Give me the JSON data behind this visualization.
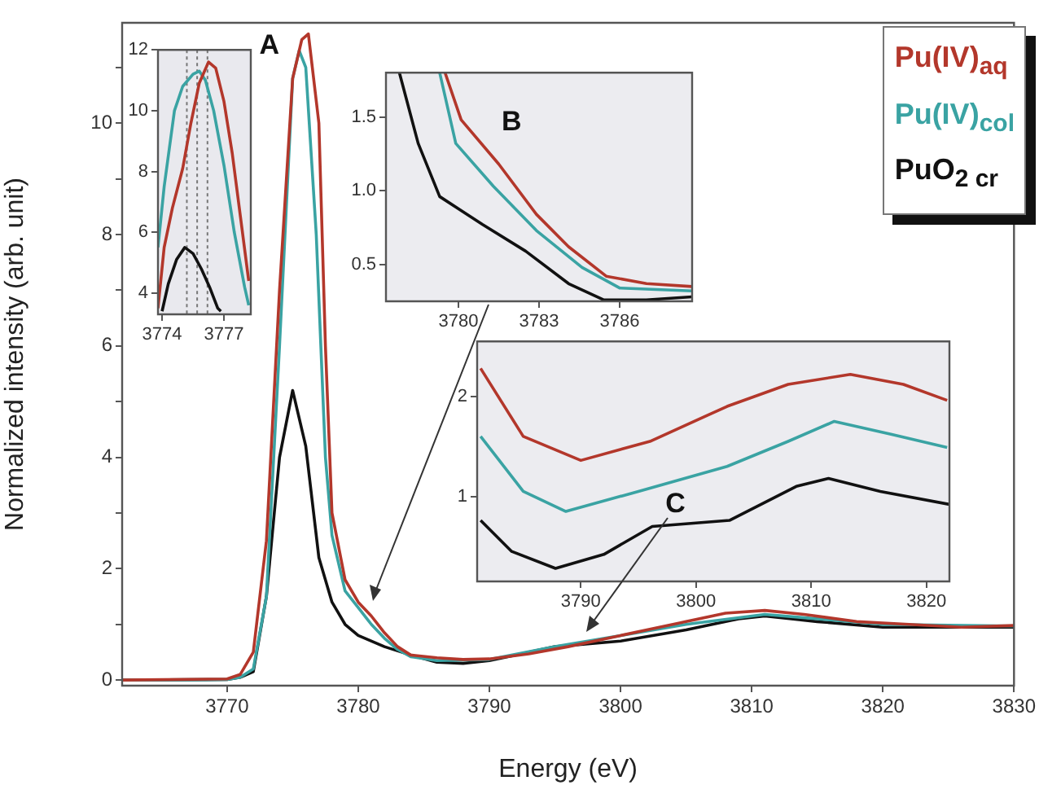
{
  "chart_data": [
    {
      "type": "line",
      "xlabel": "Energy (eV)",
      "ylabel": "Normalized intensity (arb. unit)",
      "xlim": [
        3762,
        3830
      ],
      "ylim": [
        -0.1,
        11.8
      ],
      "xticks": [
        3770,
        3780,
        3790,
        3800,
        3810,
        3820,
        3830
      ],
      "yticks": [
        0,
        {
          "value": 1,
          "label": null
        },
        2,
        {
          "value": 3,
          "label": null
        },
        4,
        {
          "value": 5,
          "label": null
        },
        6,
        {
          "value": 7,
          "label": null
        },
        8,
        {
          "value": 9,
          "label": null
        },
        10,
        {
          "value": 11,
          "label": null
        }
      ],
      "grid": false,
      "legend": "top right",
      "annotations": [
        "A"
      ],
      "series": [
        {
          "name": "Pu(IV)$_{aq}$",
          "color": "#b3372b",
          "x": [
            3762,
            3770,
            3771,
            3772,
            3773,
            3774,
            3775,
            3775.7,
            3776.2,
            3777,
            3777.5,
            3778,
            3779,
            3780,
            3781,
            3782,
            3783,
            3784,
            3786,
            3788,
            3790,
            3793,
            3796,
            3800,
            3805,
            3808,
            3811,
            3814,
            3818,
            3822,
            3826,
            3830
          ],
          "values": [
            0,
            0.02,
            0.1,
            0.5,
            2.5,
            7,
            10.8,
            11.5,
            11.6,
            10,
            6,
            3,
            1.8,
            1.4,
            1.15,
            0.85,
            0.6,
            0.45,
            0.4,
            0.37,
            0.38,
            0.47,
            0.6,
            0.8,
            1.05,
            1.2,
            1.25,
            1.18,
            1.05,
            1.0,
            0.95,
            0.98
          ]
        },
        {
          "name": "Pu(IV)$_{col}$",
          "color": "#3aa3a3",
          "x": [
            3762,
            3770,
            3771,
            3772,
            3773,
            3774,
            3775,
            3775.5,
            3776,
            3776.8,
            3777.5,
            3778,
            3779,
            3780,
            3781,
            3782,
            3783,
            3784,
            3786,
            3790,
            3795,
            3800,
            3805,
            3811,
            3815,
            3820,
            3830
          ],
          "values": [
            0,
            0.01,
            0.05,
            0.2,
            1.5,
            6,
            10.8,
            11.3,
            11,
            8,
            4,
            2.6,
            1.6,
            1.3,
            1.0,
            0.75,
            0.55,
            0.42,
            0.35,
            0.37,
            0.6,
            0.8,
            1.0,
            1.18,
            1.1,
            1.0,
            0.97
          ]
        },
        {
          "name": "PuO$_{2 cr}$",
          "color": "#111111",
          "x": [
            3762,
            3770,
            3771,
            3772,
            3773,
            3774,
            3775,
            3776,
            3777,
            3778,
            3779,
            3780,
            3782,
            3784,
            3786,
            3788,
            3790,
            3795,
            3800,
            3805,
            3809,
            3811,
            3815,
            3820,
            3830
          ],
          "values": [
            0,
            0.01,
            0.05,
            0.15,
            1.5,
            4,
            5.2,
            4.2,
            2.2,
            1.4,
            1.0,
            0.8,
            0.6,
            0.45,
            0.32,
            0.3,
            0.35,
            0.6,
            0.7,
            0.9,
            1.1,
            1.15,
            1.05,
            0.95,
            0.95
          ]
        }
      ]
    },
    {
      "type": "line",
      "xlim": [
        3773.8,
        3778.3
      ],
      "ylim": [
        3.3,
        12
      ],
      "xticks": [
        3774,
        3777
      ],
      "yticks": [
        4,
        6,
        8,
        10,
        12
      ],
      "grid": false,
      "ref_lines": [
        {
          "axis": "x",
          "value": 3775.2,
          "color": "#777777",
          "line_style": "dotted"
        },
        {
          "axis": "x",
          "value": 3775.7,
          "color": "#777777",
          "line_style": "dotted"
        },
        {
          "axis": "x",
          "value": 3776.2,
          "color": "#777777",
          "line_style": "dotted"
        }
      ],
      "series": [
        {
          "color": "#b3372b",
          "x": [
            3773.8,
            3774.1,
            3774.5,
            3775,
            3775.4,
            3775.8,
            3776.25,
            3776.6,
            3777,
            3777.4,
            3777.8,
            3778.2
          ],
          "values": [
            3.5,
            5.5,
            6.8,
            8.1,
            9.6,
            10.9,
            11.6,
            11.4,
            10.3,
            8.6,
            6.5,
            4.4
          ]
        },
        {
          "color": "#3aa3a3",
          "x": [
            3773.8,
            3774.1,
            3774.6,
            3775,
            3775.5,
            3775.8,
            3776.1,
            3776.5,
            3777,
            3777.5,
            3778,
            3778.2
          ],
          "values": [
            5.5,
            7.5,
            10.0,
            10.8,
            11.2,
            11.3,
            11.0,
            10.0,
            8.2,
            6.0,
            4.2,
            3.6
          ]
        },
        {
          "color": "#111111",
          "x": [
            3774,
            3774.3,
            3774.7,
            3775.1,
            3775.5,
            3775.9,
            3776.3,
            3776.7,
            3776.85
          ],
          "values": [
            3.4,
            4.3,
            5.1,
            5.5,
            5.3,
            4.8,
            4.2,
            3.5,
            3.4
          ]
        }
      ]
    },
    {
      "type": "line",
      "xlim": [
        3777.3,
        3788.7
      ],
      "ylim": [
        0.25,
        1.8
      ],
      "xticks": [
        3780,
        3783,
        3786
      ],
      "yticks": [
        0.5,
        {
          "value": 1,
          "label": "1.0"
        },
        1.5
      ],
      "grid": false,
      "annotations": [
        "B"
      ],
      "series": [
        {
          "color": "#b3372b",
          "x": [
            3779.5,
            3780.1,
            3781.5,
            3782.9,
            3784.1,
            3785.5,
            3787,
            3788.7
          ],
          "values": [
            1.8,
            1.48,
            1.18,
            0.84,
            0.62,
            0.42,
            0.37,
            0.35
          ]
        },
        {
          "color": "#3aa3a3",
          "x": [
            3779.3,
            3779.9,
            3781.3,
            3782.9,
            3784.6,
            3786,
            3788.7
          ],
          "values": [
            1.8,
            1.32,
            1.03,
            0.73,
            0.48,
            0.34,
            0.32
          ]
        },
        {
          "color": "#111111",
          "x": [
            3777.8,
            3778.5,
            3779.3,
            3780.9,
            3782.5,
            3784.1,
            3785.4,
            3787,
            3788.7
          ],
          "values": [
            1.8,
            1.32,
            0.96,
            0.77,
            0.59,
            0.37,
            0.26,
            0.26,
            0.28
          ]
        }
      ]
    },
    {
      "type": "line",
      "xlim": [
        3781,
        3822
      ],
      "ylim": [
        0.15,
        2.55
      ],
      "xticks": [
        3790,
        3800,
        3810,
        3820
      ],
      "yticks": [
        1,
        2
      ],
      "grid": false,
      "annotations": [
        "C"
      ],
      "series": [
        {
          "color": "#b3372b",
          "x": [
            3781.3,
            3785,
            3790,
            3796,
            3802.7,
            3808,
            3813.4,
            3818,
            3821.8
          ],
          "values": [
            2.28,
            1.6,
            1.36,
            1.55,
            1.9,
            2.12,
            2.22,
            2.12,
            1.96
          ]
        },
        {
          "color": "#3aa3a3",
          "x": [
            3781.3,
            3785,
            3788.7,
            3795,
            3802.7,
            3808,
            3812,
            3817,
            3821.8
          ],
          "values": [
            1.6,
            1.05,
            0.85,
            1.05,
            1.3,
            1.55,
            1.75,
            1.62,
            1.49
          ]
        },
        {
          "color": "#111111",
          "x": [
            3781.3,
            3784,
            3787.8,
            3792,
            3796.2,
            3802.9,
            3808.7,
            3811.5,
            3816,
            3822
          ],
          "values": [
            0.76,
            0.45,
            0.28,
            0.42,
            0.7,
            0.76,
            1.1,
            1.18,
            1.05,
            0.92
          ]
        }
      ]
    }
  ]
}
